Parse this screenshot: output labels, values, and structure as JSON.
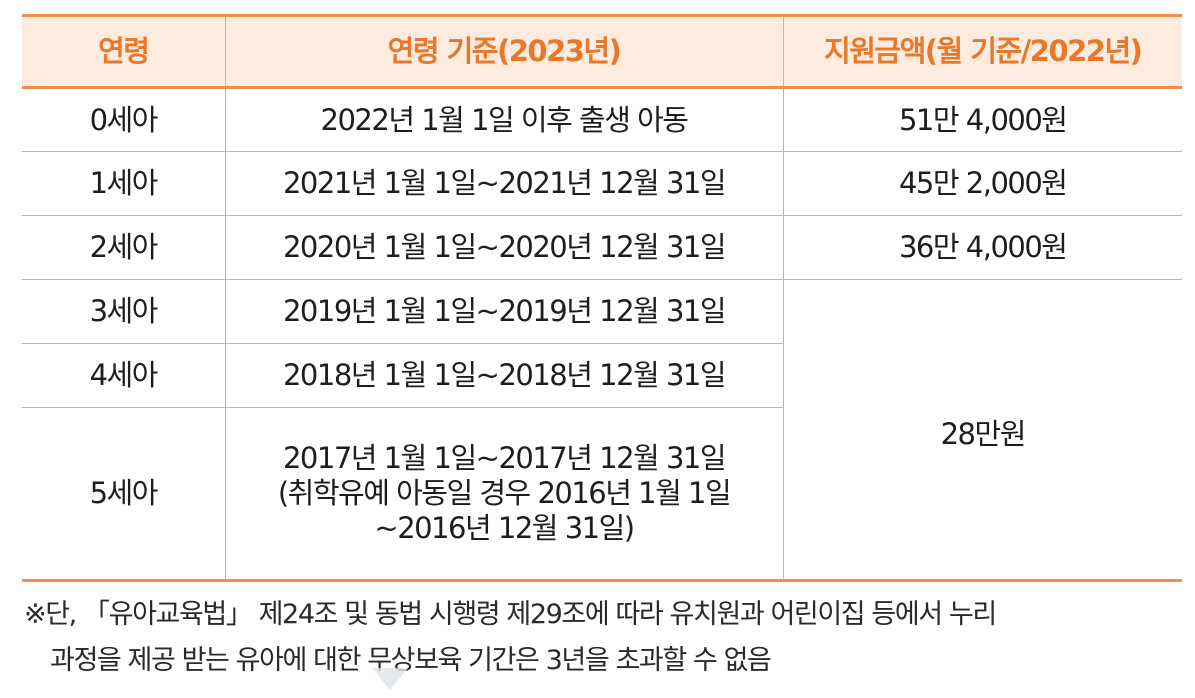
{
  "table": {
    "headers": [
      "연령",
      "연령 기준(2023년)",
      "지원금액(월 기준/2022년)"
    ],
    "rows": [
      {
        "age": "0세아",
        "range": "2022년 1월 1일 이후 출생 아동",
        "amount": "51만 4,000원"
      },
      {
        "age": "1세아",
        "range": "2021년 1월 1일~2021년 12월 31일",
        "amount": "45만 2,000원"
      },
      {
        "age": "2세아",
        "range": "2020년 1월 1일~2020년 12월 31일",
        "amount": "36만 4,000원"
      },
      {
        "age": "3세아",
        "range": "2019년 1월 1일~2019년 12월 31일"
      },
      {
        "age": "4세아",
        "range": "2018년 1월 1일~2018년 12월 31일"
      },
      {
        "age": "5세아",
        "range_lines": [
          "2017년 1월 1일~2017년 12월 31일",
          "(취학유예 아동일 경우 2016년 1월 1일",
          "~2016년 12월 31일)"
        ]
      }
    ],
    "merged_amount": "28만원"
  },
  "note": {
    "line1": "※단, 「유아교육법」 제24조 및 동법 시행령 제29조에 따라 유치원과 어린이집 등에서 누리",
    "line2": "과정을 제공 받는 유아에 대한 무상보육 기간은 3년을 초과할 수 없음"
  }
}
